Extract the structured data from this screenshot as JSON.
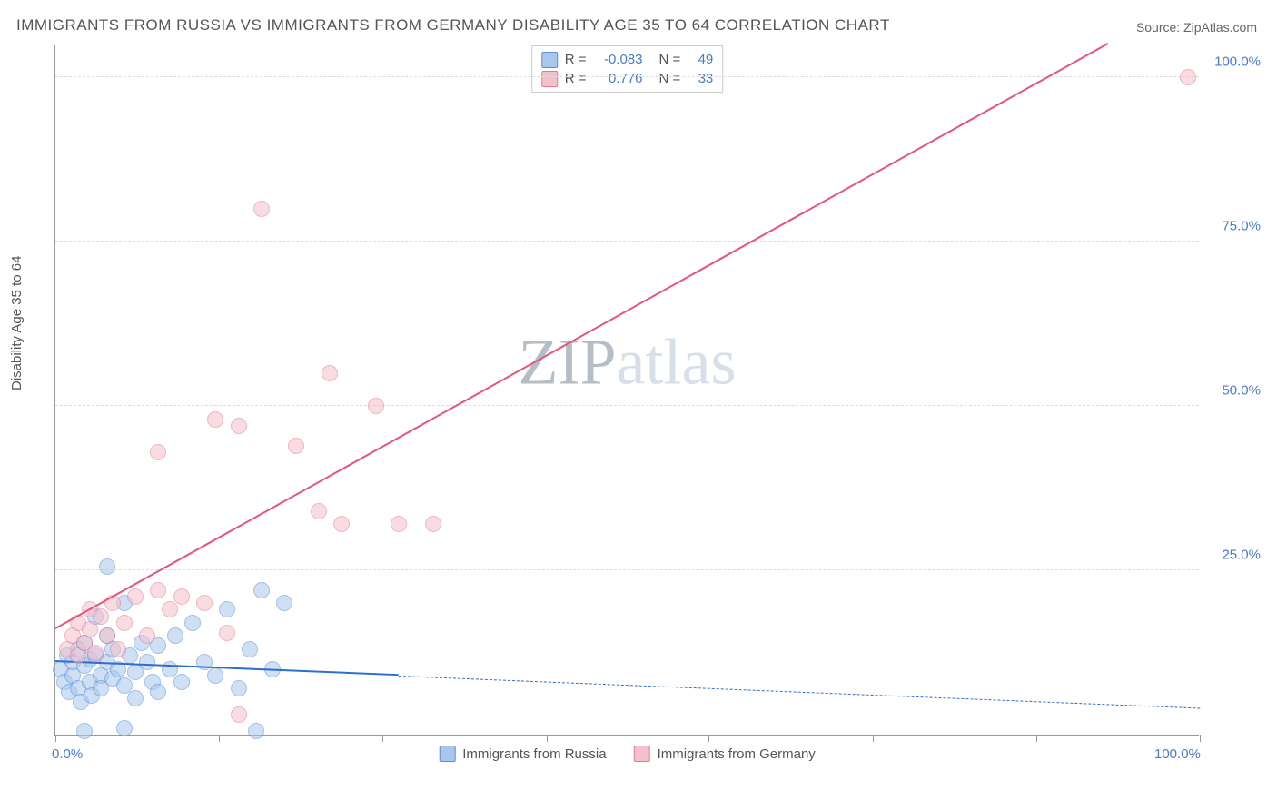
{
  "title": "IMMIGRANTS FROM RUSSIA VS IMMIGRANTS FROM GERMANY DISABILITY AGE 35 TO 64 CORRELATION CHART",
  "source": "Source: ZipAtlas.com",
  "watermark": {
    "part1": "ZIP",
    "part2": "atlas"
  },
  "chart": {
    "type": "scatter-correlation",
    "ylabel": "Disability Age 35 to 64",
    "x_domain": [
      0,
      100
    ],
    "y_domain": [
      0,
      105
    ],
    "y_gridlines": [
      25,
      50,
      75,
      100
    ],
    "y_tick_labels": [
      "25.0%",
      "50.0%",
      "75.0%",
      "100.0%"
    ],
    "x_tick_positions": [
      0,
      14.3,
      28.6,
      42.9,
      57.1,
      71.4,
      85.7,
      100
    ],
    "x_axis_labels": [
      {
        "pos": 0,
        "text": "0.0%"
      },
      {
        "pos": 100,
        "text": "100.0%"
      }
    ],
    "background_color": "#ffffff",
    "grid_color": "#dddddd",
    "axis_color": "#999999",
    "marker_radius": 9,
    "marker_opacity": 0.55,
    "series": [
      {
        "name": "Immigrants from Russia",
        "color_fill": "#a9c6ec",
        "color_stroke": "#5a8fd6",
        "R": "-0.083",
        "N": "49",
        "regression": {
          "x1": 0,
          "y1": 11,
          "x2": 100,
          "y2": 4,
          "solid_until_x": 30,
          "color": "#2e6fc9"
        },
        "points": [
          [
            0.5,
            10
          ],
          [
            0.8,
            8
          ],
          [
            1,
            12
          ],
          [
            1.2,
            6.5
          ],
          [
            1.5,
            9
          ],
          [
            1.5,
            11
          ],
          [
            2,
            7
          ],
          [
            2,
            13
          ],
          [
            2.2,
            5
          ],
          [
            2.5,
            10.5
          ],
          [
            2.5,
            14
          ],
          [
            3,
            8
          ],
          [
            3,
            11.5
          ],
          [
            3.2,
            6
          ],
          [
            3.5,
            12
          ],
          [
            3.5,
            18
          ],
          [
            4,
            9
          ],
          [
            4,
            7
          ],
          [
            4.5,
            11
          ],
          [
            4.5,
            15
          ],
          [
            5,
            8.5
          ],
          [
            5,
            13
          ],
          [
            5.5,
            10
          ],
          [
            6,
            7.5
          ],
          [
            6,
            20
          ],
          [
            6.5,
            12
          ],
          [
            7,
            9.5
          ],
          [
            7,
            5.5
          ],
          [
            7.5,
            14
          ],
          [
            8,
            11
          ],
          [
            8.5,
            8
          ],
          [
            9,
            13.5
          ],
          [
            9,
            6.5
          ],
          [
            10,
            10
          ],
          [
            10.5,
            15
          ],
          [
            11,
            8
          ],
          [
            12,
            17
          ],
          [
            13,
            11
          ],
          [
            14,
            9
          ],
          [
            15,
            19
          ],
          [
            16,
            7
          ],
          [
            17,
            13
          ],
          [
            18,
            22
          ],
          [
            19,
            10
          ],
          [
            20,
            20
          ],
          [
            4.5,
            25.5
          ],
          [
            6,
            1
          ],
          [
            2.5,
            0.5
          ],
          [
            17.5,
            0.5
          ]
        ]
      },
      {
        "name": "Immigrants from Germany",
        "color_fill": "#f3c1cc",
        "color_stroke": "#e77a94",
        "R": "0.776",
        "N": "33",
        "regression": {
          "x1": 0,
          "y1": 16,
          "x2": 92,
          "y2": 105,
          "solid_until_x": 92,
          "color": "#e8537a"
        },
        "points": [
          [
            1,
            13
          ],
          [
            1.5,
            15
          ],
          [
            2,
            12
          ],
          [
            2,
            17
          ],
          [
            2.5,
            14
          ],
          [
            3,
            16
          ],
          [
            3,
            19
          ],
          [
            3.5,
            12.5
          ],
          [
            4,
            18
          ],
          [
            4.5,
            15
          ],
          [
            5,
            20
          ],
          [
            5.5,
            13
          ],
          [
            6,
            17
          ],
          [
            7,
            21
          ],
          [
            8,
            15
          ],
          [
            9,
            22
          ],
          [
            10,
            19
          ],
          [
            11,
            21
          ],
          [
            13,
            20
          ],
          [
            15,
            15.5
          ],
          [
            16,
            3
          ],
          [
            18,
            80
          ],
          [
            9,
            43
          ],
          [
            14,
            48
          ],
          [
            16,
            47
          ],
          [
            21,
            44
          ],
          [
            24,
            55
          ],
          [
            28,
            50
          ],
          [
            23,
            34
          ],
          [
            25,
            32
          ],
          [
            30,
            32
          ],
          [
            33,
            32
          ],
          [
            99,
            100
          ]
        ]
      }
    ],
    "stats_box": {
      "rows": [
        {
          "swatch_fill": "#a9c6ec",
          "swatch_stroke": "#5a8fd6",
          "r_label": "R =",
          "r_val": "-0.083",
          "n_label": "N =",
          "n_val": "49"
        },
        {
          "swatch_fill": "#f3c1cc",
          "swatch_stroke": "#e77a94",
          "r_label": "R =",
          "r_val": "0.776",
          "n_label": "N =",
          "n_val": "33"
        }
      ]
    },
    "legend": [
      {
        "swatch_fill": "#a9c6ec",
        "swatch_stroke": "#5a8fd6",
        "label": "Immigrants from Russia"
      },
      {
        "swatch_fill": "#f3c1cc",
        "swatch_stroke": "#e77a94",
        "label": "Immigrants from Germany"
      }
    ]
  }
}
